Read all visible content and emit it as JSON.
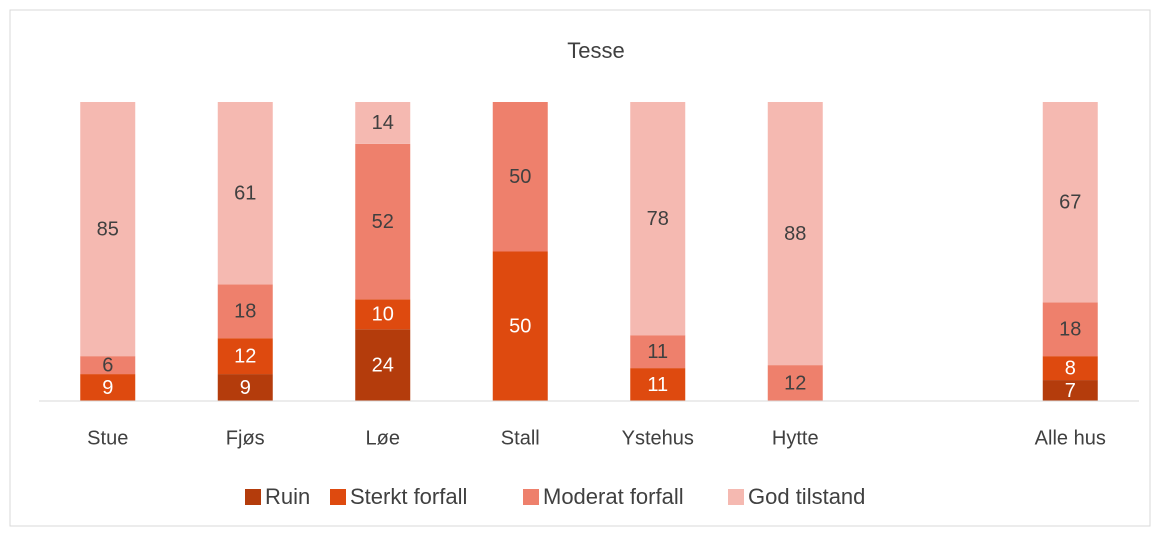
{
  "chart_data": {
    "type": "stacked_bar",
    "title": "Tesse",
    "categories": [
      "Stue",
      "Fjøs",
      "Løe",
      "Stall",
      "Ystehus",
      "Hytte",
      null,
      "Alle hus"
    ],
    "series": [
      {
        "name": "Ruin",
        "color": "#b43c0c",
        "values": [
          null,
          9,
          24,
          null,
          null,
          null,
          null,
          7
        ]
      },
      {
        "name": "Sterkt forfall",
        "color": "#de4a0f",
        "values": [
          9,
          12,
          10,
          50,
          11,
          null,
          null,
          8
        ]
      },
      {
        "name": "Moderat forfall",
        "color": "#ee806c",
        "values": [
          6,
          18,
          52,
          50,
          11,
          12,
          null,
          18
        ]
      },
      {
        "name": "God tilstand",
        "color": "#f5b9b1",
        "values": [
          85,
          61,
          14,
          null,
          78,
          88,
          null,
          67
        ]
      }
    ],
    "ylim": [
      0,
      100
    ],
    "legend": "bottom"
  }
}
